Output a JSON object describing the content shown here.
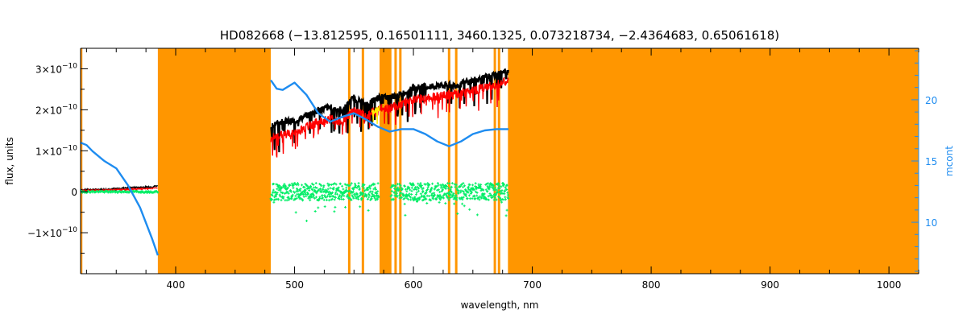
{
  "chart_data": {
    "type": "line",
    "title": "HD082668    (−13.812595, 0.16501111, 3460.1325, 0.073218734, −2.4364683, 0.65061618)",
    "xlabel": "wavelength, nm",
    "ylabel": "flux, units",
    "ylabel_right": "mcont",
    "xlim": [
      320,
      1025
    ],
    "ylim": [
      -2e-10,
      3.5e-10
    ],
    "ylim_right": [
      5.8,
      24.2
    ],
    "x_ticks": [
      400,
      500,
      600,
      700,
      800,
      900,
      1000
    ],
    "x_tick_labels": [
      "400",
      "500",
      "600",
      "700",
      "800",
      "900",
      "1000"
    ],
    "y_ticks": [
      -1e-10,
      0,
      1e-10,
      2e-10,
      3e-10
    ],
    "y_tick_labels": [
      {
        "mant": "−1×10",
        "exp": "−10"
      },
      {
        "mant": "0",
        "exp": ""
      },
      {
        "mant": "1×10",
        "exp": "−10"
      },
      {
        "mant": "2×10",
        "exp": "−10"
      },
      {
        "mant": "3×10",
        "exp": "−10"
      }
    ],
    "y_right_ticks": [
      10,
      15,
      20
    ],
    "y_right_tick_labels": [
      "10",
      "15",
      "20"
    ],
    "colors": {
      "observed": "#000000",
      "model": "#ff0000",
      "residual": "#00ee66",
      "mcont": "#1e8cf0",
      "mask": "#ff9600",
      "highlight": "#ffee00",
      "right_axis": "#1e8cf0"
    },
    "mask_bands": [
      [
        385,
        480
      ],
      [
        571.5,
        581.5
      ],
      [
        679.5,
        1025
      ]
    ],
    "mask_lines": [
      320.5,
      546,
      557.5,
      585,
      589,
      630,
      636,
      668.5,
      672
    ],
    "series": [
      {
        "name": "observed",
        "segments": [
          {
            "x": [
              320,
              340,
              360,
              380,
              385
            ],
            "y": [
              5e-12,
              6e-12,
              1e-11,
              1.2e-11,
              1.5e-11
            ]
          },
          {
            "x": [
              480,
              490,
              500,
              510,
              520,
              530,
              540,
              550,
              560,
              570,
              581,
              590,
              600,
              610,
              620,
              630,
              640,
              650,
              660,
              670,
              680
            ],
            "y": [
              1.62e-10,
              1.72e-10,
              1.72e-10,
              1.86e-10,
              2e-10,
              2.06e-10,
              2e-10,
              2.3e-10,
              2.12e-10,
              2.3e-10,
              2.32e-10,
              2.38e-10,
              2.54e-10,
              2.56e-10,
              2.58e-10,
              2.6e-10,
              2.62e-10,
              2.72e-10,
              2.78e-10,
              2.86e-10,
              2.94e-10
            ]
          }
        ]
      },
      {
        "name": "model",
        "segments": [
          {
            "x": [
              320,
              340,
              360,
              380,
              385
            ],
            "y": [
              3e-12,
              4e-12,
              6e-12,
              8e-12,
              1e-11
            ]
          },
          {
            "x": [
              480,
              490,
              500,
              510,
              520,
              530,
              540,
              550,
              560,
              570,
              581,
              590,
              600,
              610,
              620,
              630,
              640,
              650,
              660,
              670,
              680
            ],
            "y": [
              1.3e-10,
              1.4e-10,
              1.42e-10,
              1.58e-10,
              1.7e-10,
              1.78e-10,
              1.72e-10,
              1.98e-10,
              1.84e-10,
              2.02e-10,
              2.06e-10,
              2.12e-10,
              2.26e-10,
              2.3e-10,
              2.32e-10,
              2.36e-10,
              2.38e-10,
              2.48e-10,
              2.54e-10,
              2.62e-10,
              2.7e-10
            ]
          }
        ]
      },
      {
        "name": "residual",
        "segments": [
          {
            "x": [
              320,
              340,
              360,
              380,
              385
            ],
            "y": [
              0.0,
              0.0,
              0.0,
              0.0,
              0.0
            ]
          },
          {
            "x": [
              480,
              500,
              520,
              540,
              560,
              571
            ],
            "y": [
              0.0,
              0.0,
              0.0,
              0.0,
              0.0,
              0.0
            ]
          },
          {
            "x": [
              581,
              600,
              620,
              640,
              660,
              680
            ],
            "y": [
              0.0,
              0.0,
              0.0,
              0.0,
              0.0,
              0.0
            ]
          }
        ]
      },
      {
        "name": "mcont",
        "axis": "right",
        "segments": [
          {
            "x": [
              320,
              325,
              330,
              340,
              350,
              360,
              370,
              380,
              385
            ],
            "y": [
              16.5,
              16.3,
              15.8,
              15.0,
              14.4,
              13.0,
              11.2,
              8.7,
              7.3
            ]
          },
          {
            "x": [
              480,
              485,
              490,
              500,
              510,
              520,
              530,
              540,
              550,
              560,
              570,
              580,
              590,
              600,
              610,
              620,
              630,
              640,
              650,
              660,
              670,
              680
            ],
            "y": [
              21.6,
              20.9,
              20.8,
              21.4,
              20.4,
              18.9,
              18.2,
              18.6,
              18.9,
              18.4,
              17.8,
              17.4,
              17.6,
              17.6,
              17.2,
              16.6,
              16.2,
              16.6,
              17.2,
              17.5,
              17.6,
              17.6
            ]
          }
        ]
      }
    ]
  }
}
